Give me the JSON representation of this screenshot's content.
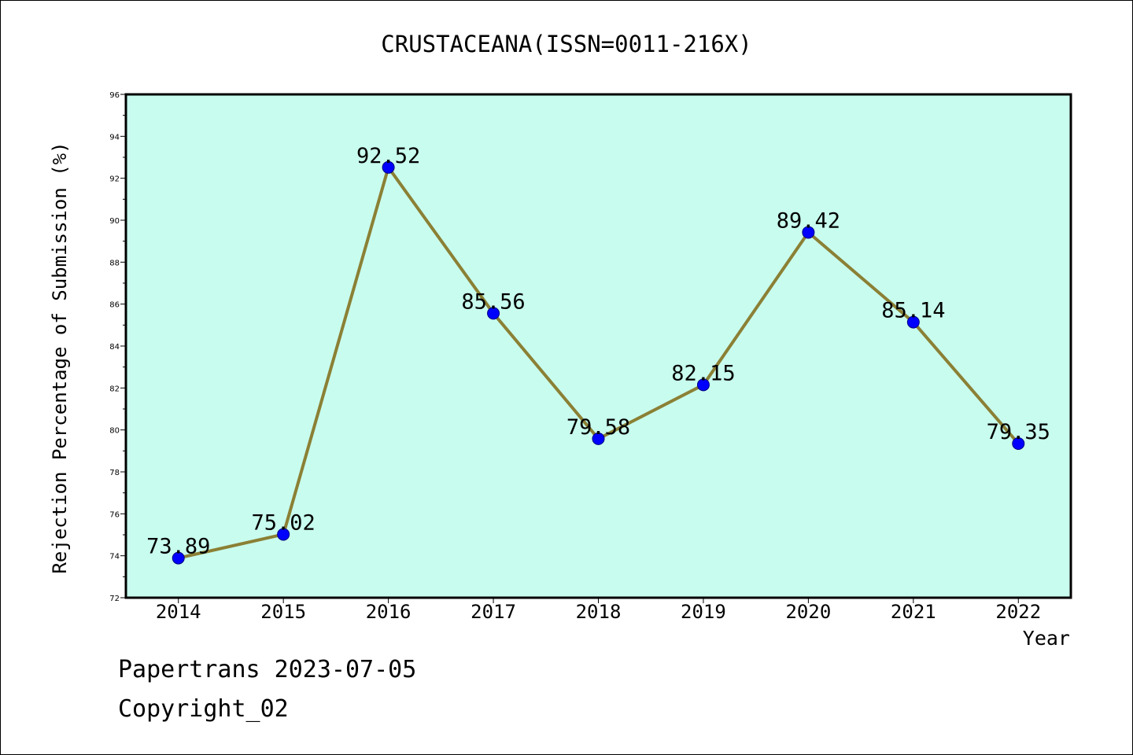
{
  "chart_data": {
    "type": "line",
    "title": "CRUSTACEANA(ISSN=0011-216X)",
    "xlabel": "Year",
    "ylabel": "Rejection Percentage of Submission (%)",
    "categories": [
      "2014",
      "2015",
      "2016",
      "2017",
      "2018",
      "2019",
      "2020",
      "2021",
      "2022"
    ],
    "values": [
      73.89,
      75.02,
      92.52,
      85.56,
      79.58,
      82.15,
      89.42,
      85.14,
      79.35
    ],
    "value_labels": [
      "73.89",
      "75.02",
      "92.52",
      "85.56",
      "79.58",
      "82.15",
      "89.42",
      "85.14",
      "79.35"
    ],
    "ylim": [
      72,
      96
    ],
    "yticks": [
      72,
      74,
      76,
      78,
      80,
      82,
      84,
      86,
      88,
      90,
      92,
      94,
      96
    ],
    "ytick_labels": [
      "72",
      "74",
      "76",
      "78",
      "80",
      "82",
      "84",
      "86",
      "88",
      "90",
      "92",
      "94",
      "96"
    ],
    "grid": false,
    "colors": {
      "plot_background": "#c8fcee",
      "line": "#8b8035",
      "marker": "#0000ff"
    }
  },
  "footer": {
    "line1": "Papertrans 2023-07-05",
    "line2": "Copyright_02"
  }
}
